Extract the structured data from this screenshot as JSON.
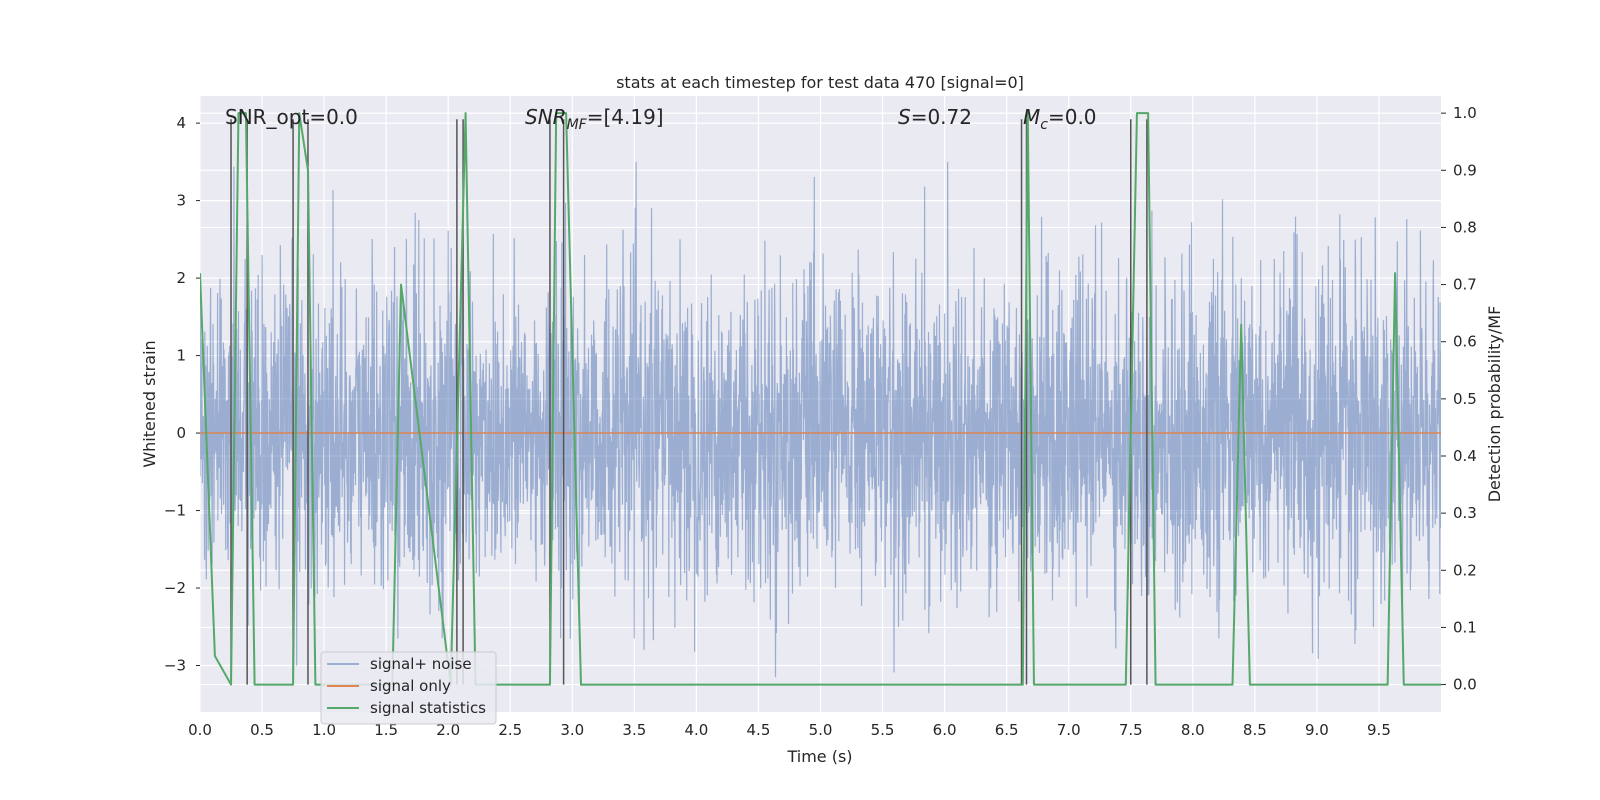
{
  "chart_data": {
    "type": "line",
    "title": "stats at each timestep for test data 470 [signal=0]",
    "xlabel": "Time (s)",
    "ylabel": "Whitened strain",
    "ylabel_right": "Detection probability/MF",
    "xlim": [
      0.0,
      10.0
    ],
    "ylim": [
      -3.6,
      4.35
    ],
    "ylim_right": [
      -0.048,
      1.03
    ],
    "x_ticks": [
      0.0,
      0.5,
      1.0,
      1.5,
      2.0,
      2.5,
      3.0,
      3.5,
      4.0,
      4.5,
      5.0,
      5.5,
      6.0,
      6.5,
      7.0,
      7.5,
      8.0,
      8.5,
      9.0,
      9.5
    ],
    "x_tick_labels": [
      "0.0",
      "0.5",
      "1.0",
      "1.5",
      "2.0",
      "2.5",
      "3.0",
      "3.5",
      "4.0",
      "4.5",
      "5.0",
      "5.5",
      "6.0",
      "6.5",
      "7.0",
      "7.5",
      "8.0",
      "8.5",
      "9.0",
      "9.5"
    ],
    "y_ticks": [
      -3,
      -2,
      -1,
      0,
      1,
      2,
      3,
      4
    ],
    "y_tick_labels": [
      "−3",
      "−2",
      "−1",
      "0",
      "1",
      "2",
      "3",
      "4"
    ],
    "y_right_ticks": [
      0.0,
      0.1,
      0.2,
      0.3,
      0.4,
      0.5,
      0.6,
      0.7,
      0.8,
      0.9,
      1.0
    ],
    "y_right_tick_labels": [
      "0.0",
      "0.1",
      "0.2",
      "0.3",
      "0.4",
      "0.5",
      "0.6",
      "0.7",
      "0.8",
      "0.9",
      "1.0"
    ],
    "grid": true,
    "legend_position": "lower-left",
    "annotations": {
      "snr_opt": "SNR_opt=0.0",
      "snr_mf_prefix": "SNR",
      "snr_mf_sub": "MF",
      "snr_mf_value": "=[4.19]",
      "s_prefix": "S",
      "s_value": "=0.72",
      "mc_prefix": "M",
      "mc_sub": "c",
      "mc_value": "=0.0"
    },
    "series": [
      {
        "name": "signal+ noise",
        "color": "#4c72b0",
        "axis": "left",
        "kind": "noise",
        "samples": 4096,
        "amplitude_sd": 1.0,
        "range": [
          -3.15,
          3.5
        ]
      },
      {
        "name": "signal only",
        "color": "#dd8452",
        "axis": "left",
        "x": [
          0.0,
          10.0
        ],
        "y": [
          0.0,
          0.0
        ]
      },
      {
        "name": "signal statistics",
        "color": "#55a868",
        "axis": "right",
        "x": [
          0.0,
          0.12,
          0.25,
          0.31,
          0.37,
          0.44,
          0.75,
          0.8,
          0.87,
          0.93,
          1.55,
          1.62,
          2.02,
          2.14,
          2.22,
          2.82,
          2.87,
          2.95,
          3.07,
          6.63,
          6.67,
          6.72,
          7.46,
          7.55,
          7.59,
          7.64,
          7.7,
          8.32,
          8.39,
          8.46,
          9.57,
          9.63,
          9.7,
          10.0
        ],
        "y": [
          0.72,
          0.05,
          0.0,
          1.0,
          1.0,
          0.0,
          0.0,
          1.0,
          0.9,
          0.0,
          0.0,
          0.7,
          0.0,
          1.0,
          0.0,
          0.0,
          1.0,
          1.0,
          0.0,
          0.0,
          1.0,
          0.0,
          0.0,
          1.0,
          1.0,
          1.0,
          0.0,
          0.0,
          0.63,
          0.0,
          0.0,
          0.72,
          0.0,
          0.0
        ]
      }
    ],
    "vlines": {
      "color": "#555555",
      "x": [
        0.25,
        0.38,
        0.75,
        0.87,
        2.07,
        2.12,
        2.82,
        2.93,
        6.62,
        6.66,
        7.5,
        7.63
      ],
      "top": 4.05,
      "bottom_right": 0.0
    }
  },
  "legend": {
    "items": [
      {
        "label": "signal+ noise",
        "color": "#4c72b0"
      },
      {
        "label": "signal only",
        "color": "#dd8452"
      },
      {
        "label": "signal statistics",
        "color": "#55a868"
      }
    ]
  }
}
